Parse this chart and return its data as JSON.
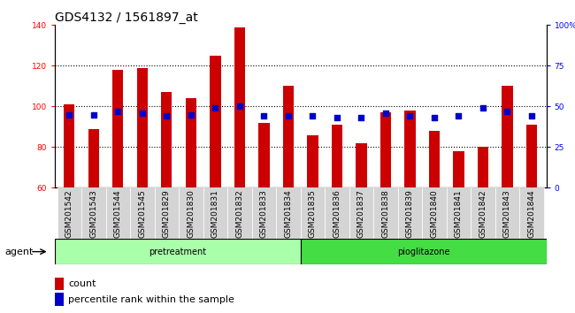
{
  "title": "GDS4132 / 1561897_at",
  "categories": [
    "GSM201542",
    "GSM201543",
    "GSM201544",
    "GSM201545",
    "GSM201829",
    "GSM201830",
    "GSM201831",
    "GSM201832",
    "GSM201833",
    "GSM201834",
    "GSM201835",
    "GSM201836",
    "GSM201837",
    "GSM201838",
    "GSM201839",
    "GSM201840",
    "GSM201841",
    "GSM201842",
    "GSM201843",
    "GSM201844"
  ],
  "count_values": [
    101,
    89,
    118,
    119,
    107,
    104,
    125,
    139,
    92,
    110,
    86,
    91,
    82,
    97,
    98,
    88,
    78,
    80,
    110,
    91
  ],
  "percentile_values": [
    45,
    45,
    47,
    46,
    44,
    45,
    49,
    50,
    44,
    44,
    44,
    43,
    43,
    46,
    44,
    43,
    44,
    49,
    47,
    44
  ],
  "group1_label": "pretreatment",
  "group2_label": "pioglitazone",
  "group1_count": 10,
  "group2_count": 10,
  "agent_label": "agent",
  "legend_count_label": "count",
  "legend_pct_label": "percentile rank within the sample",
  "ylim_left": [
    60,
    140
  ],
  "ylim_right": [
    0,
    100
  ],
  "yticks_left": [
    60,
    80,
    100,
    120,
    140
  ],
  "yticks_right": [
    0,
    25,
    50,
    75,
    100
  ],
  "yticklabels_right": [
    "0",
    "25",
    "50",
    "75",
    "100%"
  ],
  "bar_color": "#cc0000",
  "dot_color": "#0000cc",
  "group1_bg": "#aaffaa",
  "group2_bg": "#44dd44",
  "col_bg": "#d4d4d4",
  "title_fontsize": 10,
  "tick_fontsize": 6.5,
  "label_fontsize": 8,
  "agent_fontsize": 8,
  "bar_width": 0.45
}
